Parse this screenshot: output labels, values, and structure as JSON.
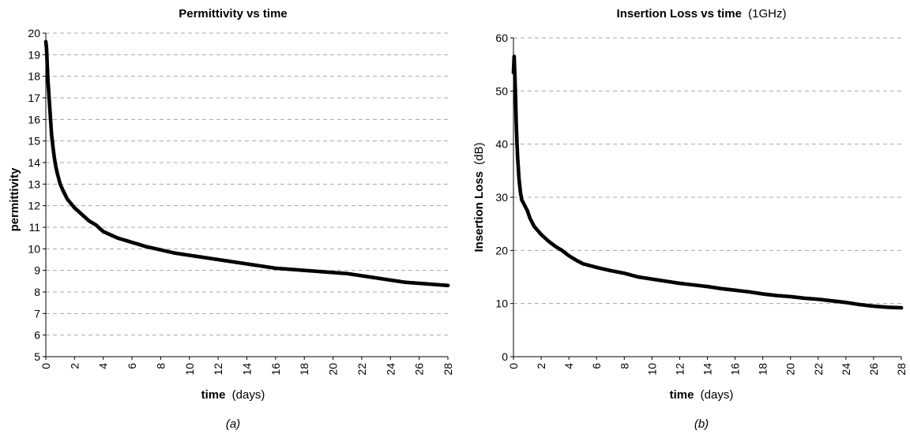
{
  "chart_data": [
    {
      "type": "scatter",
      "title": "Permittivity vs time",
      "title_suffix": "",
      "xlabel": "time",
      "xlabel_unit": "(days)",
      "ylabel": "permittivity",
      "ylabel_unit": "",
      "xlim": [
        0,
        28
      ],
      "ylim": [
        5,
        20
      ],
      "xticks": [
        0,
        2,
        4,
        6,
        8,
        10,
        12,
        14,
        16,
        18,
        20,
        22,
        24,
        26,
        28
      ],
      "yticks": [
        5,
        6,
        7,
        8,
        9,
        10,
        11,
        12,
        13,
        14,
        15,
        16,
        17,
        18,
        19,
        20
      ],
      "grid": "horizontal dashed",
      "caption": "(a)",
      "series": [
        {
          "x": [
            0,
            0.05,
            0.1,
            0.15,
            0.2,
            0.3,
            0.4,
            0.5,
            0.6,
            0.7,
            0.8,
            1.0,
            1.2,
            1.5,
            2.0,
            2.5,
            3.0,
            3.5,
            4.0,
            4.5,
            5.0,
            6.0,
            7.0,
            8.0,
            9.0,
            10.0,
            11.0,
            12.0,
            13.0,
            14.0,
            15.0,
            16.0,
            17.0,
            18.0,
            19.0,
            20.0,
            21.0,
            22.0,
            23.0,
            24.0,
            25.0,
            26.0,
            27.0,
            28.0
          ],
          "y": [
            19.6,
            19.3,
            18.5,
            17.8,
            17.3,
            16.3,
            15.3,
            14.7,
            14.2,
            13.8,
            13.5,
            13.0,
            12.7,
            12.3,
            11.9,
            11.6,
            11.3,
            11.1,
            10.8,
            10.65,
            10.5,
            10.3,
            10.1,
            9.95,
            9.8,
            9.7,
            9.6,
            9.5,
            9.4,
            9.3,
            9.2,
            9.1,
            9.05,
            9.0,
            8.95,
            8.9,
            8.85,
            8.75,
            8.65,
            8.55,
            8.45,
            8.4,
            8.35,
            8.3
          ]
        }
      ]
    },
    {
      "type": "scatter",
      "title": "Insertion Loss vs time",
      "title_suffix": "(1GHz)",
      "xlabel": "time",
      "xlabel_unit": "(days)",
      "ylabel": "Insertion Loss",
      "ylabel_unit": "(dB)",
      "xlim": [
        0,
        28
      ],
      "ylim": [
        0,
        60
      ],
      "xticks": [
        0,
        2,
        4,
        6,
        8,
        10,
        12,
        14,
        16,
        18,
        20,
        22,
        24,
        26,
        28
      ],
      "yticks": [
        0,
        10,
        20,
        30,
        40,
        50,
        60
      ],
      "grid": "horizontal dashed",
      "caption": "(b)",
      "series": [
        {
          "x": [
            0,
            0.05,
            0.1,
            0.15,
            0.2,
            0.25,
            0.3,
            0.4,
            0.5,
            0.6,
            0.8,
            1.0,
            1.2,
            1.5,
            2.0,
            2.5,
            3.0,
            3.5,
            4.0,
            4.5,
            5.0,
            6.0,
            7.0,
            8.0,
            9.0,
            10.0,
            11.0,
            12.0,
            13.0,
            14.0,
            15.0,
            16.0,
            17.0,
            18.0,
            19.0,
            20.0,
            21.0,
            22.0,
            23.0,
            24.0,
            25.0,
            26.0,
            27.0,
            28.0
          ],
          "y": [
            53.5,
            56.5,
            53.0,
            49.0,
            44.0,
            40.5,
            37.5,
            33.5,
            31.0,
            29.5,
            28.5,
            27.5,
            26.0,
            24.5,
            23.0,
            21.8,
            20.8,
            20.0,
            19.0,
            18.2,
            17.5,
            16.8,
            16.2,
            15.7,
            15.0,
            14.6,
            14.2,
            13.8,
            13.5,
            13.2,
            12.8,
            12.5,
            12.2,
            11.8,
            11.5,
            11.3,
            11.0,
            10.8,
            10.5,
            10.2,
            9.8,
            9.5,
            9.3,
            9.2
          ]
        }
      ]
    }
  ]
}
